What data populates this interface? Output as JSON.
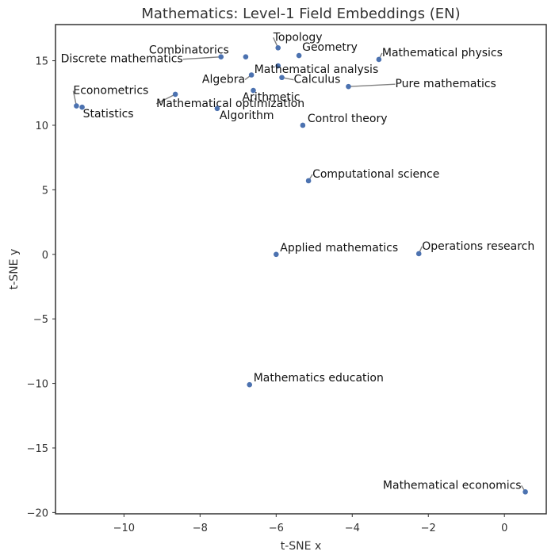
{
  "chart_data": {
    "type": "scatter",
    "title": "Mathematics: Level-1 Field Embeddings (EN)",
    "xlabel": "t-SNE x",
    "ylabel": "t-SNE y",
    "xlim": [
      -11.8,
      1.1
    ],
    "ylim": [
      -20.1,
      17.8
    ],
    "xticks": [
      -10,
      -8,
      -6,
      -4,
      -2,
      0
    ],
    "yticks": [
      -20,
      -15,
      -10,
      -5,
      0,
      5,
      10,
      15
    ],
    "grid": false,
    "legend": "none",
    "point_color": "#4c72b0",
    "points": [
      {
        "x": -5.95,
        "y": 16.0,
        "label": "Topology"
      },
      {
        "x": -5.4,
        "y": 15.4,
        "label": "Geometry"
      },
      {
        "x": -7.45,
        "y": 15.3,
        "label": "Discrete mathematics"
      },
      {
        "x": -6.8,
        "y": 15.3,
        "label": "Combinatorics"
      },
      {
        "x": -3.3,
        "y": 15.1,
        "label": "Mathematical physics"
      },
      {
        "x": -5.95,
        "y": 14.6,
        "label": "Mathematical analysis"
      },
      {
        "x": -6.65,
        "y": 13.9,
        "label": "Algebra"
      },
      {
        "x": -5.85,
        "y": 13.7,
        "label": "Calculus"
      },
      {
        "x": -4.1,
        "y": 13.0,
        "label": "Pure mathematics"
      },
      {
        "x": -6.6,
        "y": 12.7,
        "label": "Arithmetic"
      },
      {
        "x": -8.65,
        "y": 12.4,
        "label": "Mathematical optimization"
      },
      {
        "x": -11.25,
        "y": 11.5,
        "label": "Econometrics"
      },
      {
        "x": -11.1,
        "y": 11.4,
        "label": "Statistics"
      },
      {
        "x": -7.55,
        "y": 11.3,
        "label": "Algorithm"
      },
      {
        "x": -5.3,
        "y": 10.0,
        "label": "Control theory"
      },
      {
        "x": -5.15,
        "y": 5.7,
        "label": "Computational science"
      },
      {
        "x": -6.0,
        "y": 0.0,
        "label": "Applied mathematics"
      },
      {
        "x": -2.25,
        "y": 0.05,
        "label": "Operations research"
      },
      {
        "x": -6.7,
        "y": -10.1,
        "label": "Mathematics education"
      },
      {
        "x": 0.55,
        "y": -18.4,
        "label": "Mathematical economics"
      }
    ]
  }
}
